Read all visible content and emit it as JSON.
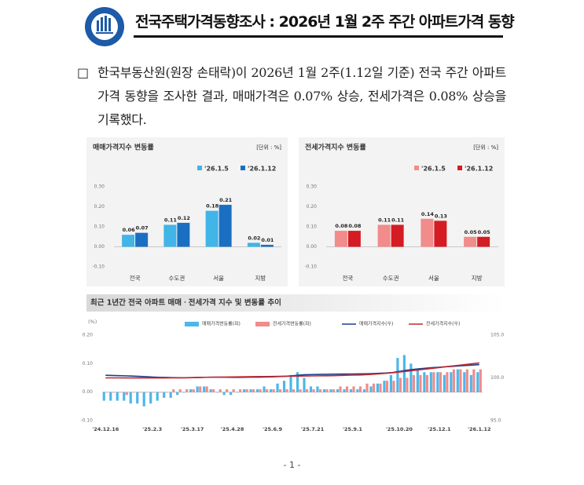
{
  "header": {
    "title": "전국주택가격동향조사 : 2026년 1월 2주 주간 아파트가격 동향"
  },
  "paragraph": {
    "bullet": "□",
    "text": "한국부동산원(원장 손태락)이 2026년 1월 2주(1.12일 기준) 전국 주간 아파트가격 동향을 조사한 결과, 매매가격은 0.07% 상승, 전세가격은 0.08% 상승을 기록했다."
  },
  "chart_data": [
    {
      "type": "bar",
      "title": "매매가격지수 변동률",
      "unit": "[단위 : %]",
      "categories": [
        "전국",
        "수도권",
        "서울",
        "지방"
      ],
      "series": [
        {
          "name": "'26.1.5",
          "color": "#41b4e8",
          "values": [
            0.06,
            0.11,
            0.18,
            0.02
          ]
        },
        {
          "name": "'26.1.12",
          "color": "#1b6fc2",
          "values": [
            0.07,
            0.12,
            0.21,
            0.01
          ]
        }
      ],
      "ylim": [
        -0.1,
        0.3
      ],
      "yticks": [
        {
          "value": -0.1,
          "label": "-0.10"
        },
        {
          "value": 0,
          "label": "0.00"
        },
        {
          "value": 0.1,
          "label": "0.10"
        },
        {
          "value": 0.2,
          "label": "0.20"
        },
        {
          "value": 0.3,
          "label": "0.30"
        }
      ],
      "data_labels": true
    },
    {
      "type": "bar",
      "title": "전세가격지수 변동률",
      "unit": "[단위 : %]",
      "categories": [
        "전국",
        "수도권",
        "서울",
        "지방"
      ],
      "series": [
        {
          "name": "'26.1.5",
          "color": "#f28b8b",
          "values": [
            0.08,
            0.11,
            0.14,
            0.05
          ]
        },
        {
          "name": "'26.1.12",
          "color": "#d41c22",
          "values": [
            0.08,
            0.11,
            0.13,
            0.05
          ]
        }
      ],
      "ylim": [
        -0.1,
        0.3
      ],
      "yticks": [
        {
          "value": -0.1,
          "label": "-0.10"
        },
        {
          "value": 0,
          "label": "0.00"
        },
        {
          "value": 0.1,
          "label": "0.10"
        },
        {
          "value": 0.2,
          "label": "0.20"
        },
        {
          "value": 0.3,
          "label": "0.30"
        }
      ],
      "data_labels": true
    },
    {
      "type": "bar_line",
      "title": "최근 1년간 전국 아파트 매매ㆍ전세가격 지수 및 변동률 추이",
      "y_label": "(%)",
      "categories": [
        "'24.12.16",
        null,
        null,
        null,
        null,
        null,
        null,
        "'25.2.3",
        null,
        null,
        null,
        null,
        null,
        "'25.3.17",
        null,
        null,
        null,
        null,
        null,
        "'25.4.28",
        null,
        null,
        null,
        null,
        null,
        "'25.6.9",
        null,
        null,
        null,
        null,
        null,
        "'25.7.21",
        null,
        null,
        null,
        null,
        null,
        "'25.9.1",
        null,
        null,
        null,
        null,
        null,
        null,
        "'25.10.20",
        null,
        null,
        null,
        null,
        null,
        "'25.12.1",
        null,
        null,
        null,
        null,
        null,
        "'26.1.12"
      ],
      "series": [
        {
          "name": "매매가격변동률(좌)",
          "type": "bar",
          "color": "#4cb7ea",
          "values": [
            -0.03,
            -0.03,
            -0.03,
            -0.03,
            -0.04,
            -0.04,
            -0.05,
            -0.04,
            -0.03,
            -0.02,
            -0.02,
            -0.01,
            0.0,
            0.01,
            0.02,
            0.02,
            0.01,
            0.0,
            -0.01,
            -0.01,
            0.0,
            0.01,
            0.01,
            0.01,
            0.02,
            0.01,
            0.03,
            0.04,
            0.06,
            0.07,
            0.05,
            0.02,
            0.02,
            0.01,
            0.01,
            0.01,
            0.01,
            0.01,
            0.01,
            0.01,
            0.02,
            0.03,
            0.04,
            0.06,
            0.12,
            0.13,
            0.1,
            0.08,
            0.07,
            0.07,
            0.07,
            0.06,
            0.07,
            0.08,
            0.07,
            0.06,
            0.07
          ]
        },
        {
          "name": "전세가격변동률(좌)",
          "type": "bar",
          "color": "#f08c8c",
          "values": [
            0.0,
            0.0,
            0.0,
            -0.01,
            0.0,
            0.0,
            0.0,
            0.0,
            0.0,
            0.0,
            0.01,
            0.01,
            0.01,
            0.01,
            0.02,
            0.02,
            0.01,
            0.01,
            0.01,
            0.01,
            0.01,
            0.01,
            0.01,
            0.01,
            0.01,
            0.01,
            0.01,
            0.01,
            0.01,
            0.01,
            0.01,
            0.01,
            0.01,
            0.01,
            0.01,
            0.02,
            0.02,
            0.02,
            0.02,
            0.03,
            0.03,
            0.03,
            0.04,
            0.04,
            0.05,
            0.05,
            0.06,
            0.06,
            0.06,
            0.07,
            0.07,
            0.07,
            0.08,
            0.08,
            0.08,
            0.08,
            0.08
          ]
        },
        {
          "name": "매매가격지수(우)",
          "type": "line",
          "axis": "y2",
          "color": "#1f3d8c",
          "values": [
            100.3,
            100.28,
            100.26,
            100.24,
            100.21,
            100.18,
            100.14,
            100.1,
            100.07,
            100.05,
            100.03,
            100.02,
            100.02,
            100.03,
            100.05,
            100.07,
            100.08,
            100.08,
            100.07,
            100.06,
            100.06,
            100.07,
            100.08,
            100.09,
            100.11,
            100.12,
            100.15,
            100.19,
            100.25,
            100.32,
            100.37,
            100.39,
            100.41,
            100.42,
            100.43,
            100.44,
            100.45,
            100.46,
            100.47,
            100.48,
            100.5,
            100.53,
            100.57,
            100.63,
            100.75,
            100.88,
            100.98,
            101.06,
            101.13,
            101.2,
            101.25,
            101.3,
            101.35,
            101.4,
            101.45,
            101.5,
            101.55
          ]
        },
        {
          "name": "전세가격지수(우)",
          "type": "line",
          "axis": "y2",
          "color": "#c0282d",
          "values": [
            100.0,
            100.0,
            100.0,
            99.99,
            99.99,
            99.99,
            99.99,
            99.99,
            99.99,
            99.99,
            100.0,
            100.01,
            100.02,
            100.03,
            100.05,
            100.07,
            100.08,
            100.09,
            100.1,
            100.11,
            100.12,
            100.13,
            100.14,
            100.15,
            100.16,
            100.17,
            100.18,
            100.19,
            100.2,
            100.21,
            100.22,
            100.23,
            100.24,
            100.25,
            100.26,
            100.28,
            100.3,
            100.32,
            100.34,
            100.37,
            100.42,
            100.47,
            100.53,
            100.6,
            100.68,
            100.76,
            100.85,
            100.94,
            101.03,
            101.12,
            101.21,
            101.3,
            101.39,
            101.48,
            101.57,
            101.66,
            101.75
          ]
        }
      ],
      "ylim": [
        -0.1,
        0.2
      ],
      "yticks": [
        {
          "value": -0.1,
          "label": "-0.10"
        },
        {
          "value": 0,
          "label": "0.00"
        },
        {
          "value": 0.1,
          "label": "0.10"
        },
        {
          "value": 0.2,
          "label": "0.20"
        }
      ],
      "y2lim": [
        95,
        105
      ],
      "y2ticks": [
        {
          "value": 95,
          "label": "95.0"
        },
        {
          "value": 100,
          "label": "100.0"
        },
        {
          "value": 105,
          "label": "105.0"
        }
      ]
    }
  ],
  "page_number": "- 1 -"
}
